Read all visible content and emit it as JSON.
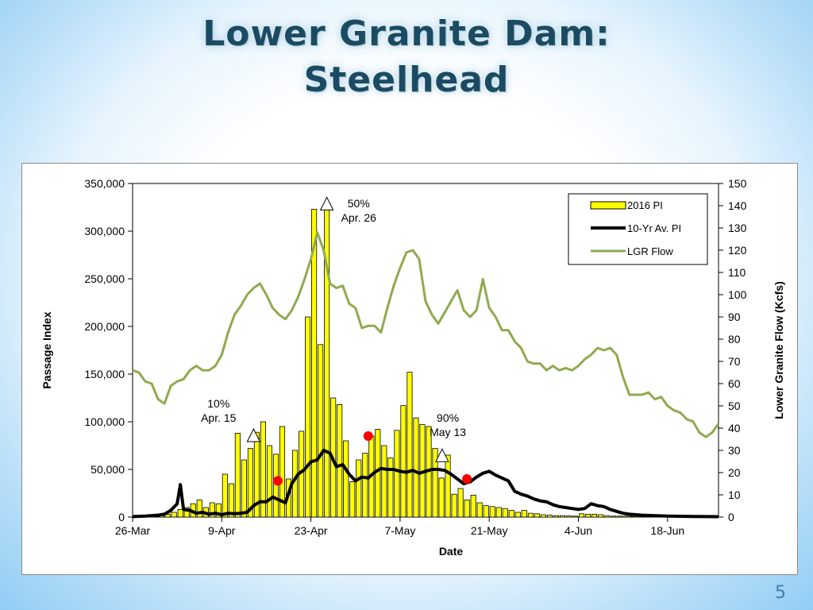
{
  "slide": {
    "title_line1": "Lower Granite Dam:",
    "title_line2": "Steelhead",
    "number": "5"
  },
  "colors": {
    "bar_fill": "#ffff00",
    "bar_stroke": "#000000",
    "avg_line": "#000000",
    "flow_line": "#8faa4f",
    "marker": "#ff0000",
    "title": "#1a4b63"
  },
  "chart_data": {
    "type": "bar",
    "title": "",
    "xlabel": "Date",
    "ylabel": "Passage Index",
    "y2label": "Lower Granite Flow (Kcfs)",
    "x_tick_labels": [
      "26-Mar",
      "9-Apr",
      "23-Apr",
      "7-May",
      "21-May",
      "4-Jun",
      "18-Jun"
    ],
    "x_tick_days": [
      0,
      14,
      28,
      42,
      56,
      70,
      84
    ],
    "xlim": [
      0,
      92
    ],
    "ylim": [
      0,
      350000
    ],
    "y_ticks": [
      0,
      50000,
      100000,
      150000,
      200000,
      250000,
      300000,
      350000
    ],
    "y_tick_labels": [
      "0",
      "50,000",
      "100,000",
      "150,000",
      "200,000",
      "250,000",
      "300,000",
      "350,000"
    ],
    "y2lim": [
      0,
      150
    ],
    "y2_ticks": [
      0,
      10,
      20,
      30,
      40,
      50,
      60,
      70,
      80,
      90,
      100,
      110,
      120,
      130,
      140,
      150
    ],
    "y2_tick_labels": [
      "0",
      "10",
      "20",
      "30",
      "40",
      "50",
      "60",
      "70",
      "80",
      "90",
      "100",
      "110",
      "120",
      "130",
      "140",
      "150"
    ],
    "legend_position": "top-right",
    "series": [
      {
        "name": "2016 PI",
        "type": "bar",
        "axis": "left",
        "start_day": 0,
        "values": [
          500,
          1000,
          1500,
          2000,
          2500,
          3000,
          5000,
          8000,
          10000,
          14000,
          18000,
          10000,
          15000,
          14000,
          45000,
          35000,
          88000,
          60000,
          72000,
          89000,
          100000,
          75000,
          66000,
          95000,
          40000,
          70000,
          90000,
          210000,
          323000,
          181000,
          330000,
          125000,
          118000,
          80000,
          37000,
          60000,
          67000,
          85000,
          92000,
          75000,
          62000,
          91000,
          117000,
          152000,
          104000,
          97000,
          95000,
          72000,
          41000,
          65000,
          24000,
          30000,
          18000,
          23000,
          15000,
          12000,
          11000,
          10000,
          9000,
          7000,
          5000,
          7000,
          4000,
          3500,
          2500,
          2000,
          1500,
          1500,
          1200,
          1000,
          3500,
          3000,
          3000,
          2500,
          1500,
          1000,
          1000,
          1000,
          800,
          800,
          500,
          500,
          500,
          500,
          500,
          300,
          300,
          300,
          300,
          200,
          200,
          200
        ]
      },
      {
        "name": "10-Yr Av. PI",
        "type": "line",
        "axis": "left",
        "points": [
          [
            0,
            500
          ],
          [
            2,
            1000
          ],
          [
            4,
            2000
          ],
          [
            5,
            3000
          ],
          [
            6,
            7000
          ],
          [
            7,
            14000
          ],
          [
            7.5,
            34000
          ],
          [
            8,
            8000
          ],
          [
            9,
            7000
          ],
          [
            10,
            4000
          ],
          [
            11,
            5000
          ],
          [
            12,
            3000
          ],
          [
            13,
            4000
          ],
          [
            14,
            2500
          ],
          [
            15,
            4000
          ],
          [
            16,
            3500
          ],
          [
            17,
            4000
          ],
          [
            18,
            5000
          ],
          [
            19,
            12000
          ],
          [
            20,
            16000
          ],
          [
            21,
            16000
          ],
          [
            22,
            21000
          ],
          [
            23,
            18000
          ],
          [
            24,
            15000
          ],
          [
            25,
            35000
          ],
          [
            26,
            45000
          ],
          [
            27,
            50000
          ],
          [
            28,
            58000
          ],
          [
            29,
            60000
          ],
          [
            30,
            70000
          ],
          [
            31,
            67000
          ],
          [
            32,
            53000
          ],
          [
            33,
            55000
          ],
          [
            34,
            45000
          ],
          [
            35,
            38000
          ],
          [
            36,
            42000
          ],
          [
            37,
            41000
          ],
          [
            38,
            47000
          ],
          [
            39,
            51000
          ],
          [
            40,
            50000
          ],
          [
            41,
            50000
          ],
          [
            42,
            48000
          ],
          [
            43,
            47000
          ],
          [
            44,
            49000
          ],
          [
            45,
            46000
          ],
          [
            46,
            48000
          ],
          [
            47,
            50000
          ],
          [
            48,
            50000
          ],
          [
            49,
            49000
          ],
          [
            50,
            45000
          ],
          [
            51,
            40000
          ],
          [
            52,
            35000
          ],
          [
            53,
            37000
          ],
          [
            54,
            42000
          ],
          [
            55,
            46000
          ],
          [
            56,
            48000
          ],
          [
            57,
            44000
          ],
          [
            58,
            41000
          ],
          [
            59,
            38000
          ],
          [
            60,
            27000
          ],
          [
            61,
            24000
          ],
          [
            62,
            22000
          ],
          [
            63,
            19000
          ],
          [
            64,
            17000
          ],
          [
            65,
            16000
          ],
          [
            66,
            13000
          ],
          [
            67,
            11000
          ],
          [
            68,
            10000
          ],
          [
            69,
            9000
          ],
          [
            70,
            8000
          ],
          [
            71,
            9000
          ],
          [
            72,
            14000
          ],
          [
            73,
            12000
          ],
          [
            74,
            11000
          ],
          [
            75,
            8000
          ],
          [
            76,
            6000
          ],
          [
            77,
            4000
          ],
          [
            78,
            3000
          ],
          [
            79,
            2500
          ],
          [
            80,
            2000
          ],
          [
            82,
            1500
          ],
          [
            84,
            1000
          ],
          [
            86,
            800
          ],
          [
            88,
            600
          ],
          [
            90,
            500
          ],
          [
            92,
            400
          ]
        ]
      },
      {
        "name": "LGR Flow",
        "type": "line",
        "axis": "right",
        "points": [
          [
            0,
            66
          ],
          [
            1,
            65
          ],
          [
            2,
            61
          ],
          [
            3,
            60
          ],
          [
            4,
            53
          ],
          [
            5,
            51
          ],
          [
            6,
            59
          ],
          [
            7,
            61
          ],
          [
            8,
            62
          ],
          [
            9,
            66
          ],
          [
            10,
            68
          ],
          [
            11,
            66
          ],
          [
            12,
            66
          ],
          [
            13,
            68
          ],
          [
            14,
            73
          ],
          [
            15,
            83
          ],
          [
            16,
            91
          ],
          [
            17,
            95
          ],
          [
            18,
            100
          ],
          [
            19,
            103
          ],
          [
            20,
            105
          ],
          [
            21,
            100
          ],
          [
            22,
            94
          ],
          [
            23,
            91
          ],
          [
            24,
            89
          ],
          [
            25,
            93
          ],
          [
            26,
            99
          ],
          [
            27,
            107
          ],
          [
            28,
            116
          ],
          [
            29,
            128
          ],
          [
            30,
            120
          ],
          [
            31,
            105
          ],
          [
            32,
            103
          ],
          [
            33,
            104
          ],
          [
            34,
            96
          ],
          [
            35,
            94
          ],
          [
            36,
            85
          ],
          [
            37,
            86
          ],
          [
            38,
            86
          ],
          [
            39,
            83
          ],
          [
            40,
            94
          ],
          [
            41,
            104
          ],
          [
            42,
            112
          ],
          [
            43,
            119
          ],
          [
            44,
            120
          ],
          [
            45,
            116
          ],
          [
            46,
            97
          ],
          [
            47,
            91
          ],
          [
            48,
            87
          ],
          [
            49,
            92
          ],
          [
            50,
            97
          ],
          [
            51,
            102
          ],
          [
            52,
            93
          ],
          [
            53,
            90
          ],
          [
            54,
            93
          ],
          [
            55,
            107
          ],
          [
            56,
            94
          ],
          [
            57,
            90
          ],
          [
            58,
            84
          ],
          [
            59,
            84
          ],
          [
            60,
            79
          ],
          [
            61,
            76
          ],
          [
            62,
            70
          ],
          [
            63,
            69
          ],
          [
            64,
            69
          ],
          [
            65,
            66
          ],
          [
            66,
            68
          ],
          [
            67,
            66
          ],
          [
            68,
            67
          ],
          [
            69,
            66
          ],
          [
            70,
            68
          ],
          [
            71,
            71
          ],
          [
            72,
            73
          ],
          [
            73,
            76
          ],
          [
            74,
            75
          ],
          [
            75,
            76
          ],
          [
            76,
            73
          ],
          [
            77,
            63
          ],
          [
            78,
            55
          ],
          [
            79,
            55
          ],
          [
            80,
            55
          ],
          [
            81,
            56
          ],
          [
            82,
            53
          ],
          [
            83,
            54
          ],
          [
            84,
            50
          ],
          [
            85,
            48
          ],
          [
            86,
            47
          ],
          [
            87,
            44
          ],
          [
            88,
            43
          ],
          [
            89,
            38
          ],
          [
            90,
            36
          ],
          [
            91,
            38
          ],
          [
            92,
            42
          ]
        ]
      }
    ],
    "markers": [
      {
        "series": "2016 PI",
        "kind": "open-triangle",
        "x": 19,
        "y": 85000
      },
      {
        "series": "2016 PI",
        "kind": "open-triangle",
        "x": 30.5,
        "y": 328000
      },
      {
        "series": "2016 PI",
        "kind": "open-triangle",
        "x": 48.6,
        "y": 64000
      },
      {
        "series": "10-Yr Av. PI",
        "kind": "red-dot",
        "x": 22.8,
        "y": 38000
      },
      {
        "series": "10-Yr Av. PI",
        "kind": "red-dot",
        "x": 37,
        "y": 85000
      },
      {
        "series": "10-Yr Av. PI",
        "kind": "red-dot",
        "x": 52.5,
        "y": 40000
      }
    ],
    "annotations": [
      {
        "line1": "10%",
        "line2": "Apr. 15",
        "x": 13.5,
        "y": 115000
      },
      {
        "line1": "50%",
        "line2": "Apr. 26",
        "x": 35.5,
        "y": 325000
      },
      {
        "line1": "90%",
        "line2": "May 13",
        "x": 49.5,
        "y": 100000
      }
    ]
  }
}
